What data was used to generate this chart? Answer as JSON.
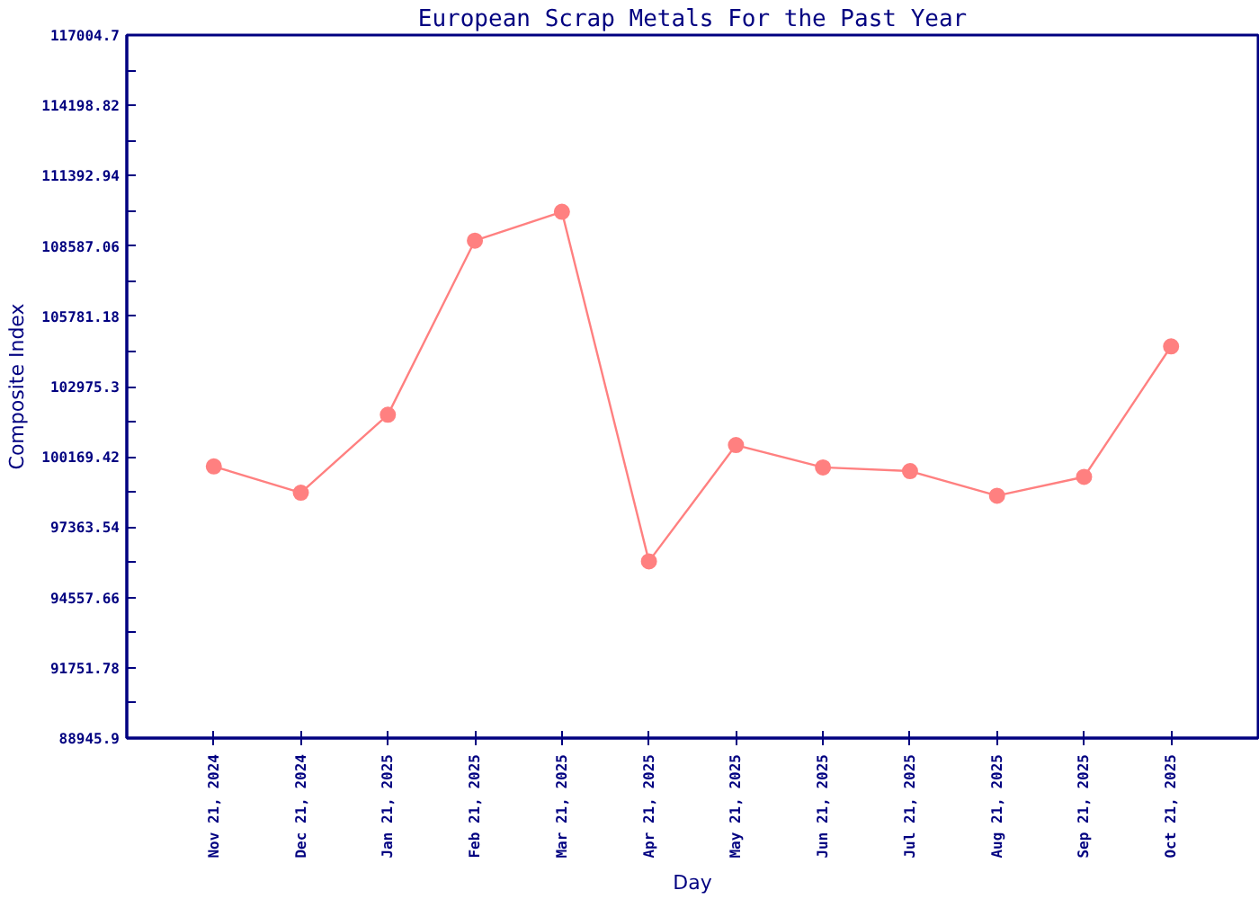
{
  "chart_data": {
    "type": "line",
    "title": "European Scrap Metals For the Past Year",
    "xlabel": "Day",
    "ylabel": "Composite Index",
    "categories": [
      "Nov 21, 2024",
      "Dec 21, 2024",
      "Jan 21, 2025",
      "Feb 21, 2025",
      "Mar 21, 2025",
      "Apr 21, 2025",
      "May 21, 2025",
      "Jun 21, 2025",
      "Jul 21, 2025",
      "Aug 21, 2025",
      "Sep 21, 2025",
      "Oct 21, 2025"
    ],
    "series": [
      {
        "color": "#ff8080",
        "values": [
          99790,
          98740,
          101850,
          108800,
          109950,
          96000,
          100640,
          99750,
          99600,
          98620,
          99370,
          104580
        ]
      }
    ],
    "ylim": [
      88945.9,
      117004.7
    ],
    "yticks": [
      88945.9,
      91751.78,
      94557.66,
      97363.54,
      100169.42,
      102975.3,
      105781.18,
      108587.06,
      111392.94,
      114198.82,
      117004.7
    ],
    "marker": "circle",
    "line_style": "solid"
  }
}
